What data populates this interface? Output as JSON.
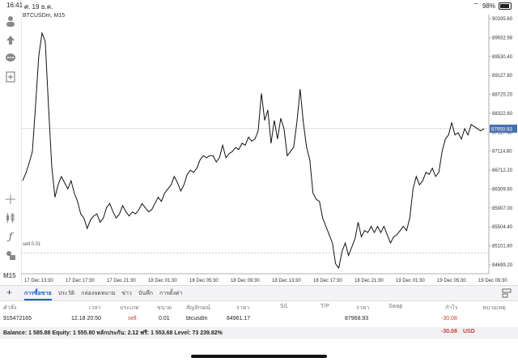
{
  "status_bar": {
    "time": "16:41",
    "date": "ศ. 19 ธ.ค.",
    "battery": "98%"
  },
  "left_toolbar": {
    "timeframe_label": "M15"
  },
  "chart": {
    "symbol": "BTCUSDm, M15",
    "sell_line_label": "sell 0.01",
    "current_price": "87950.93",
    "price_labels": [
      "90335.60",
      "89932.98",
      "89530.40",
      "89127.80",
      "88725.20",
      "88322.60",
      "87517.40",
      "87114.80",
      "86712.20",
      "86309.60",
      "85907.00",
      "85504.40",
      "85101.80",
      "84699.20"
    ],
    "time_labels": [
      "17 Dec 13:30",
      "17 Dec 17:30",
      "17 Dec 21:30",
      "18 Dec 01:30",
      "18 Dec 05:30",
      "18 Dec 09:30",
      "18 Dec 13:30",
      "18 Dec 17:30",
      "18 Dec 21:30",
      "19 Dec 01:30",
      "19 Dec 05:30",
      "19 Dec 09:30"
    ],
    "colors": {
      "line": "#111111",
      "current_price_bg": "#4a6fb0",
      "grid": "#eeeeee"
    }
  },
  "chart_data": {
    "type": "line",
    "title": "BTCUSDm, M15",
    "ylim": [
      84500,
      90500
    ],
    "sell_price": 84961.17,
    "current_price": 87950.93,
    "values": [
      86700,
      86880,
      87120,
      87400,
      88500,
      89700,
      90250,
      90050,
      88500,
      87050,
      86300,
      86600,
      86800,
      86650,
      86500,
      86700,
      86400,
      86200,
      85900,
      85800,
      85550,
      85750,
      85850,
      85900,
      85700,
      85800,
      86050,
      86150,
      85950,
      85800,
      85900,
      86100,
      85950,
      85850,
      85950,
      85900,
      86000,
      86150,
      86050,
      85950,
      86000,
      86150,
      86300,
      86200,
      86400,
      86500,
      86600,
      86800,
      86650,
      86450,
      86600,
      86850,
      86950,
      86900,
      87000,
      87200,
      87300,
      87250,
      87300,
      87300,
      87150,
      87250,
      87550,
      87250,
      87350,
      87400,
      87500,
      87450,
      87600,
      87550,
      87750,
      87650,
      87700,
      87900,
      88800,
      88150,
      88400,
      87600,
      88150,
      87700,
      88200,
      87950,
      87300,
      87400,
      87500,
      88100,
      88900,
      88100,
      87500,
      87200,
      86400,
      86250,
      86200,
      85800,
      85600,
      85400,
      85200,
      84700,
      84600,
      85000,
      85200,
      84900,
      85100,
      85300,
      85700,
      85350,
      85500,
      85450,
      85600,
      85450,
      85600,
      85450,
      85600,
      85400,
      85200,
      85350,
      85400,
      85500,
      85600,
      85500,
      85800,
      86500,
      86800,
      86600,
      86700,
      86900,
      86850,
      87000,
      86800,
      86900,
      87400,
      87700,
      87800,
      88100,
      87800,
      87850,
      87700,
      87950,
      87800,
      88050,
      88000,
      87950,
      87900,
      87950
    ]
  },
  "tabs": [
    {
      "label": "การซื้อขาย",
      "active": true
    },
    {
      "label": "ประวัติ"
    },
    {
      "label": "กล่องจดหมาย"
    },
    {
      "label": "ข่าว"
    },
    {
      "label": "บันทึก"
    },
    {
      "label": "การตั้งค่า"
    }
  ],
  "table": {
    "headers": [
      "คำสั่ง",
      "เวลา",
      "ประเภท",
      "ขนาด",
      "สัญลักษณ์",
      "ราคา",
      "S/L",
      "T/P",
      "ราคา",
      "Swap",
      "กำไร",
      "หมายเหตุ"
    ],
    "row": [
      "915472165",
      "12.18 20:50",
      "sell",
      "0.01",
      "btcusdm",
      "84961.17",
      "",
      "",
      "87968.93",
      "",
      "-30.08",
      ""
    ]
  },
  "balance": {
    "text": "Balance: 1 585.88 Equity: 1 555.80 หลักประกัน: 2.12 ฟรี: 1 553.68 Level: 73 239.82%",
    "profit": "-30.08",
    "currency": "USD"
  }
}
